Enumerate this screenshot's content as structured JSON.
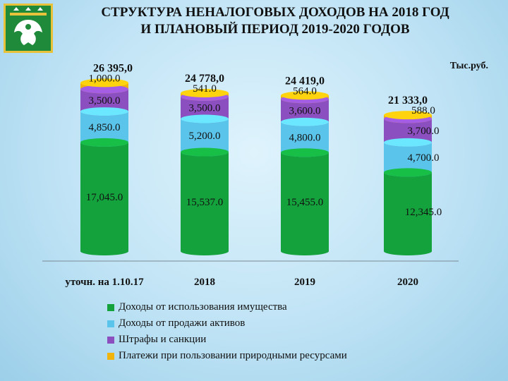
{
  "title": {
    "line1": "СТРУКТУРА НЕНАЛОГОВЫХ ДОХОДОВ НА 2018 ГОД",
    "line2": "И ПЛАНОВЫЙ ПЕРИОД 2019-2020 ГОДОВ"
  },
  "units": "Тыс.руб.",
  "chart_data": {
    "type": "bar",
    "stacked": true,
    "categories": [
      "уточн. на 1.10.17",
      "2018",
      "2019",
      "2020"
    ],
    "totals": [
      "26 395,0",
      "24 778,0",
      "24 419,0",
      "21 333,0"
    ],
    "series": [
      {
        "name": "Доходы от использования имущества",
        "color": "#14a23c",
        "values": [
          17045.0,
          15537.0,
          15455.0,
          12345.0
        ],
        "labels": [
          "17,045.0",
          "15,537.0",
          "15,455.0",
          "12,345.0"
        ]
      },
      {
        "name": "Доходы от продажи активов",
        "color": "#5bc4ea",
        "values": [
          4850.0,
          5200.0,
          4800.0,
          4700.0
        ],
        "labels": [
          "4,850.0",
          "5,200.0",
          "4,800.0",
          "4,700.0"
        ]
      },
      {
        "name": "Штрафы и санкции",
        "color": "#8b4fc0",
        "values": [
          3500.0,
          3500.0,
          3600.0,
          3700.0
        ],
        "labels": [
          "3,500.0",
          "3,500.0",
          "3,600.0",
          "3,700.0"
        ]
      },
      {
        "name": "Платежи при пользовании природными ресурсами",
        "color": "#f0b40c",
        "values": [
          1000.0,
          541.0,
          564.0,
          588.0
        ],
        "labels": [
          "1,000.0",
          "541.0",
          "564.0",
          "588.0"
        ]
      }
    ],
    "legend_position": "bottom",
    "grid": false
  },
  "emblem": {
    "icon": "coat-of-arms-icon",
    "colors": {
      "field": "#1f8a3a",
      "border": "#e7c23a",
      "figure": "#ffffff"
    }
  }
}
